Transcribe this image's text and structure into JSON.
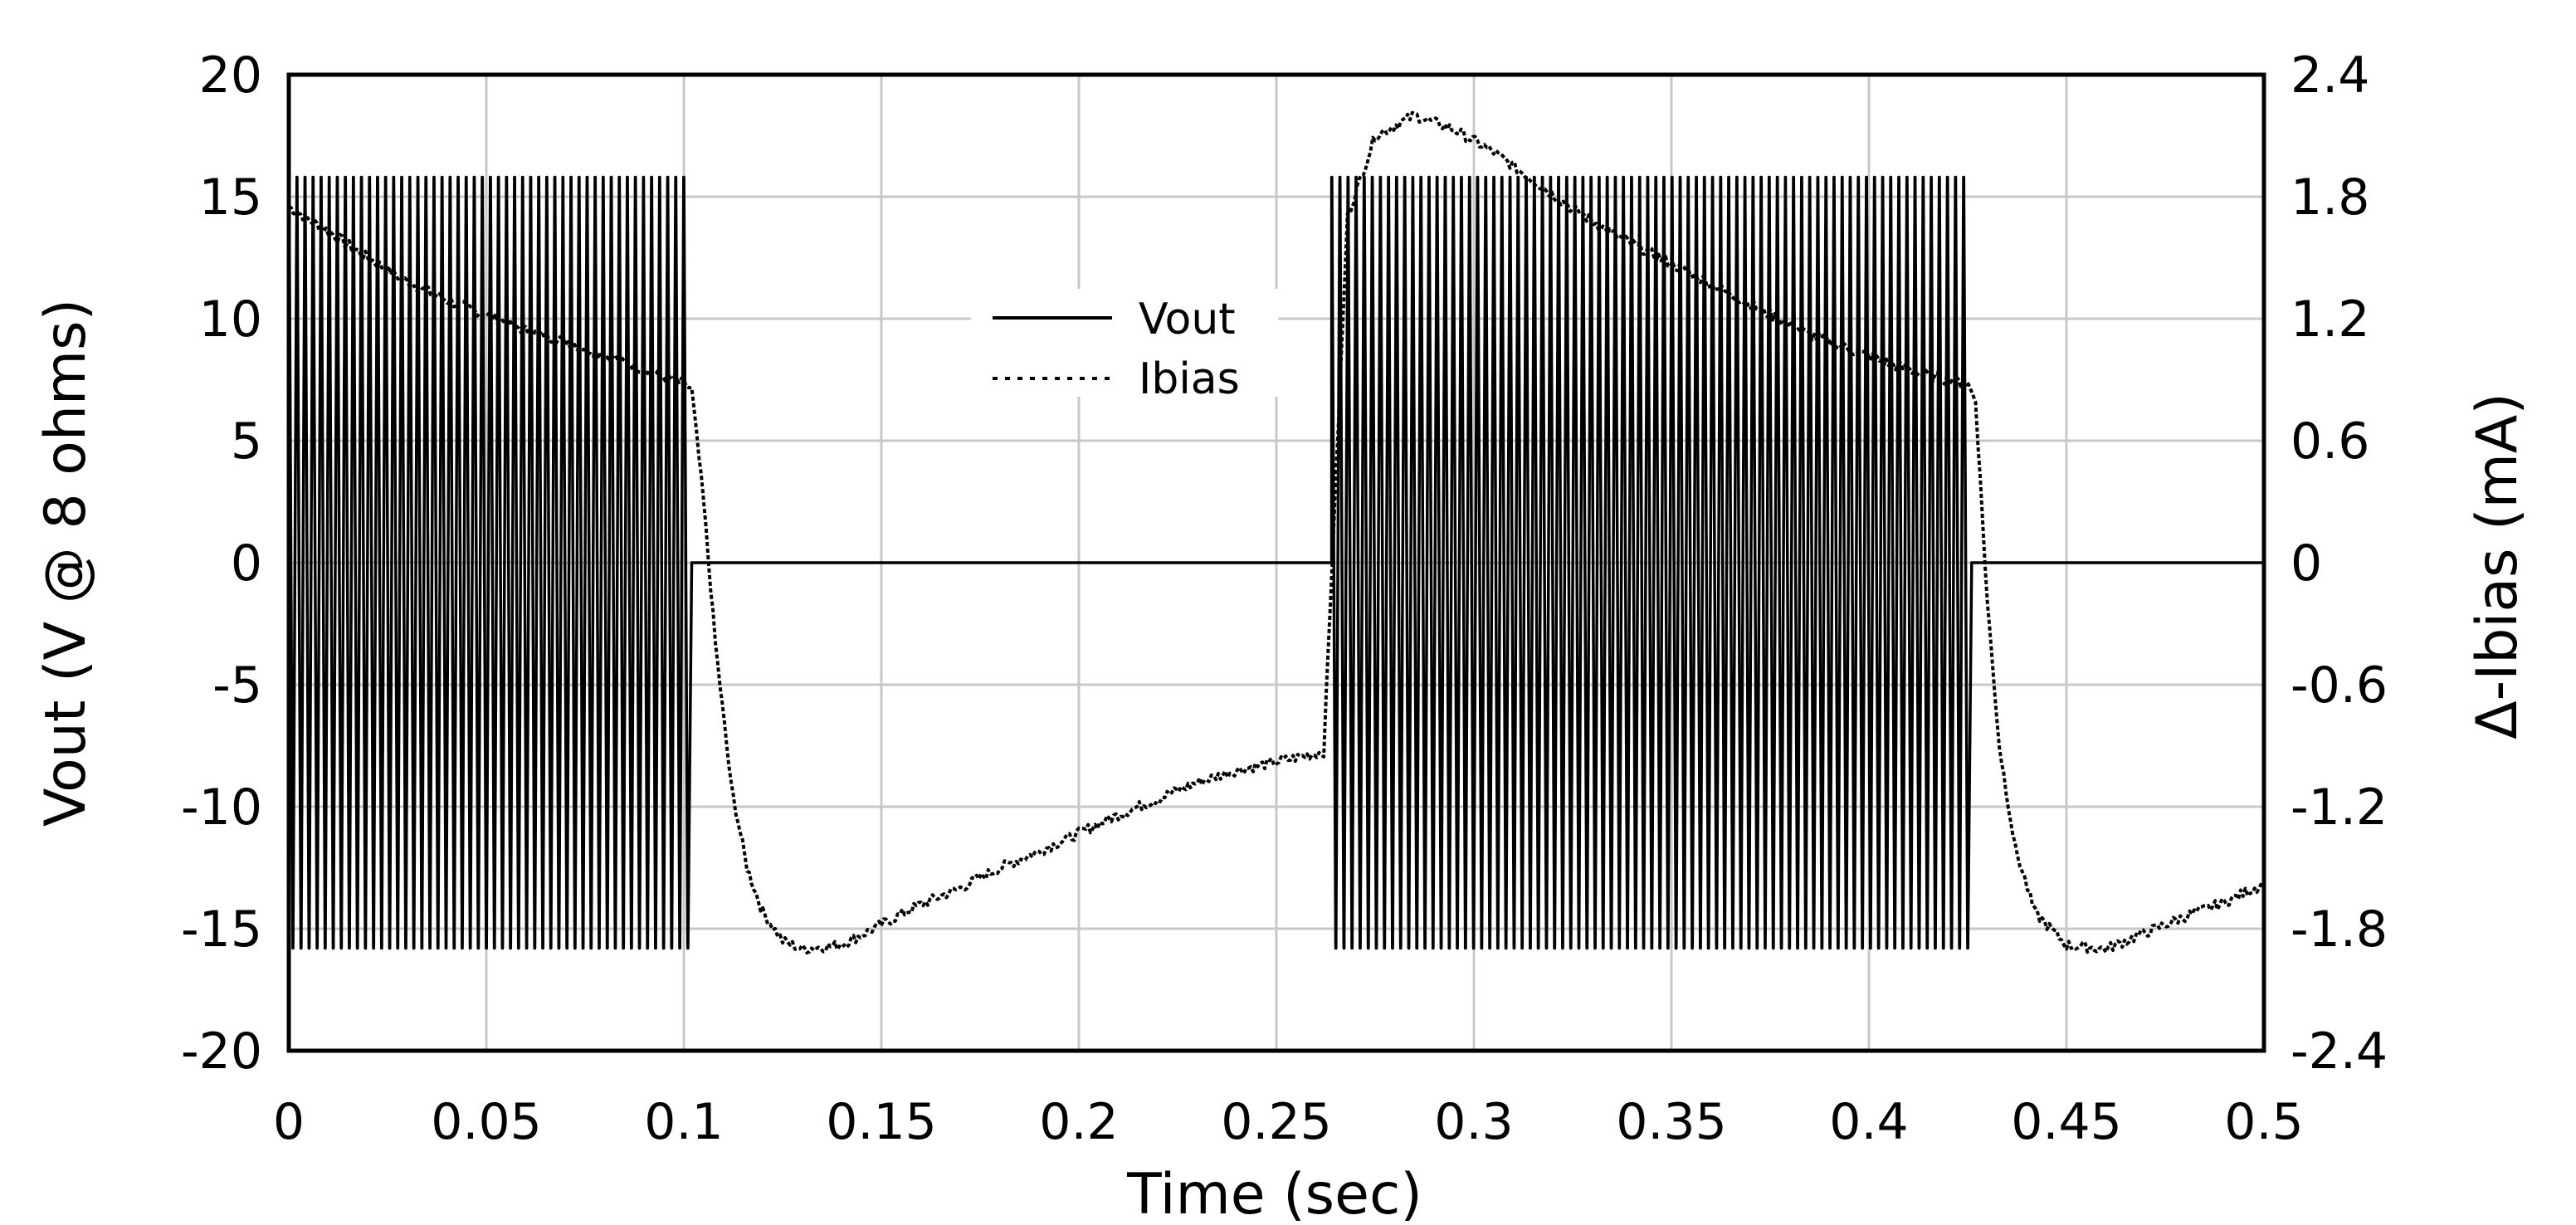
{
  "chart_data": {
    "type": "line",
    "xlabel": "Time (sec)",
    "ylabel": "Vout (V @ 8 ohms)",
    "y2label": "Δ-Ibias (mA)",
    "xlim": [
      0,
      0.5
    ],
    "ylim": [
      -20,
      20
    ],
    "y2lim": [
      -2.4,
      2.4
    ],
    "xticks": [
      "0",
      "0.05",
      "0.1",
      "0.15",
      "0.2",
      "0.25",
      "0.3",
      "0.35",
      "0.4",
      "0.45",
      "0.5"
    ],
    "yticks": [
      "20",
      "15",
      "10",
      "5",
      "0",
      "-5",
      "-10",
      "-15",
      "-20"
    ],
    "y2ticks": [
      "2.4",
      "1.8",
      "1.2",
      "0.6",
      "0",
      "-0.6",
      "-1.2",
      "-1.8",
      "-2.4"
    ],
    "grid": true,
    "legend": {
      "placement": "upper-center",
      "entries": [
        {
          "label": "Vout",
          "style": "solid"
        },
        {
          "label": "Ibias",
          "style": "dotted"
        }
      ]
    },
    "series": [
      {
        "name": "Vout",
        "axis": "left",
        "description_values": {
          "burst_windows": [
            [
              0.0,
              0.102
            ],
            [
              0.264,
              0.426
            ]
          ],
          "burst_amplitude": 15.8,
          "burst_cycles": [
            50,
            79
          ],
          "idle_level": 0
        }
      },
      {
        "name": "Ibias",
        "axis": "right",
        "points": [
          [
            0.0,
            1.75
          ],
          [
            0.01,
            1.63
          ],
          [
            0.02,
            1.5
          ],
          [
            0.03,
            1.38
          ],
          [
            0.04,
            1.29
          ],
          [
            0.05,
            1.22
          ],
          [
            0.06,
            1.14
          ],
          [
            0.07,
            1.09
          ],
          [
            0.08,
            1.02
          ],
          [
            0.09,
            0.95
          ],
          [
            0.1,
            0.88
          ],
          [
            0.102,
            0.85
          ],
          [
            0.105,
            0.3
          ],
          [
            0.108,
            -0.4
          ],
          [
            0.112,
            -1.1
          ],
          [
            0.116,
            -1.5
          ],
          [
            0.12,
            -1.72
          ],
          [
            0.125,
            -1.86
          ],
          [
            0.13,
            -1.9
          ],
          [
            0.14,
            -1.88
          ],
          [
            0.15,
            -1.78
          ],
          [
            0.16,
            -1.68
          ],
          [
            0.17,
            -1.6
          ],
          [
            0.18,
            -1.5
          ],
          [
            0.19,
            -1.42
          ],
          [
            0.2,
            -1.33
          ],
          [
            0.21,
            -1.24
          ],
          [
            0.22,
            -1.16
          ],
          [
            0.23,
            -1.08
          ],
          [
            0.24,
            -1.02
          ],
          [
            0.25,
            -0.98
          ],
          [
            0.262,
            -0.93
          ],
          [
            0.268,
            1.7
          ],
          [
            0.275,
            2.1
          ],
          [
            0.285,
            2.2
          ],
          [
            0.295,
            2.13
          ],
          [
            0.305,
            2.02
          ],
          [
            0.315,
            1.88
          ],
          [
            0.325,
            1.74
          ],
          [
            0.335,
            1.62
          ],
          [
            0.345,
            1.52
          ],
          [
            0.355,
            1.42
          ],
          [
            0.365,
            1.32
          ],
          [
            0.375,
            1.22
          ],
          [
            0.385,
            1.12
          ],
          [
            0.395,
            1.05
          ],
          [
            0.405,
            0.98
          ],
          [
            0.415,
            0.92
          ],
          [
            0.425,
            0.88
          ],
          [
            0.427,
            0.8
          ],
          [
            0.43,
            -0.2
          ],
          [
            0.433,
            -0.9
          ],
          [
            0.437,
            -1.4
          ],
          [
            0.442,
            -1.72
          ],
          [
            0.45,
            -1.88
          ],
          [
            0.46,
            -1.9
          ],
          [
            0.47,
            -1.82
          ],
          [
            0.48,
            -1.74
          ],
          [
            0.49,
            -1.67
          ],
          [
            0.5,
            -1.58
          ]
        ]
      }
    ]
  }
}
